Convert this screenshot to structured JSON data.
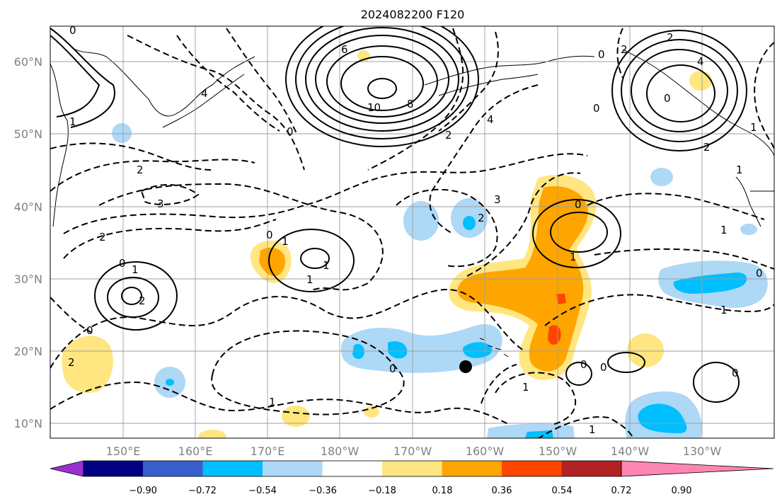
{
  "title": "2024082200 F120",
  "lon_labels": [
    "150°E",
    "160°E",
    "170°E",
    "180°W",
    "170°W",
    "160°W",
    "150°W",
    "140°W",
    "130°W"
  ],
  "lat_labels": [
    "60°N",
    "50°N",
    "40°N",
    "30°N",
    "20°N",
    "10°N"
  ],
  "colorbar": {
    "colors": [
      "#9b30d0",
      "#000080",
      "#3a5fcd",
      "#00bfff",
      "#add8f6",
      "#ffffff",
      "#ffe680",
      "#ffa500",
      "#ff4500",
      "#b22222",
      "#ff85b2"
    ],
    "tick_labels": [
      "−0.90",
      "−0.72",
      "−0.54",
      "−0.36",
      "−0.18",
      "0.18",
      "0.36",
      "0.54",
      "0.72",
      "0.90"
    ]
  },
  "contour_labels": [
    "0",
    "6",
    "10",
    "8",
    "0",
    "2",
    "4",
    "3",
    "4",
    "0",
    "2",
    "1",
    "2",
    "3",
    "2",
    "0",
    "1",
    "2",
    "0",
    "1",
    "0",
    "1",
    "1",
    "0",
    "1",
    "2",
    "0",
    "1",
    "1",
    "0",
    "0",
    "0",
    "1",
    "0",
    "1",
    "1",
    "1",
    "0",
    "1",
    "2",
    "2",
    "4",
    "0",
    "2"
  ],
  "marker": "storm-position-dot"
}
